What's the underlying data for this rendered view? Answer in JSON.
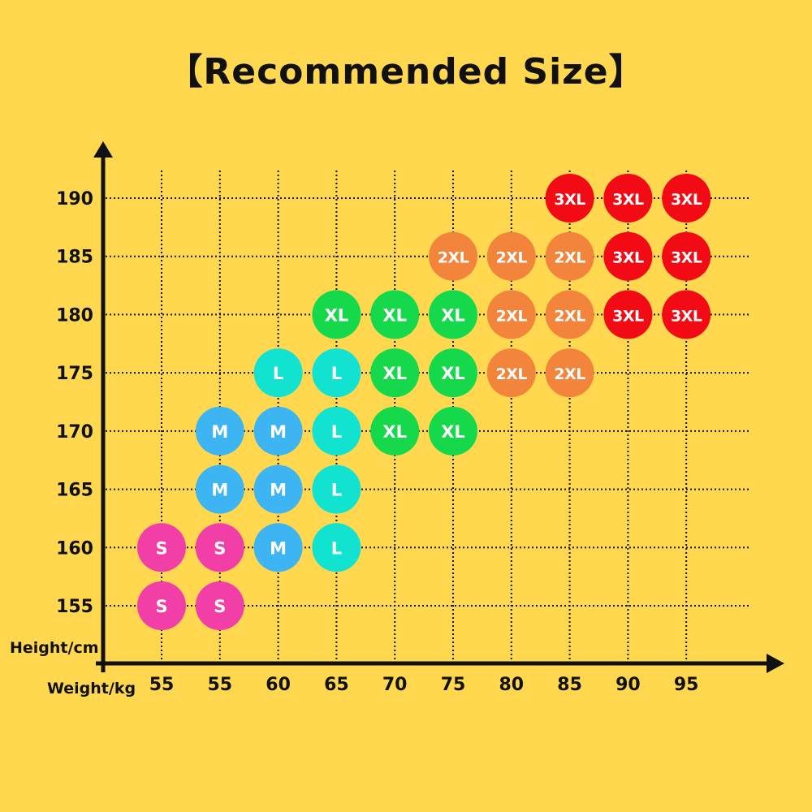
{
  "chart_data": {
    "type": "scatter",
    "title": "【Recommended Size】",
    "xlabel": "Weight/kg",
    "ylabel": "Height/cm",
    "x_categories": [
      "55",
      "55",
      "60",
      "65",
      "70",
      "75",
      "80",
      "85",
      "90",
      "95"
    ],
    "y_ticks": [
      155,
      160,
      165,
      170,
      175,
      180,
      185,
      190
    ],
    "grid": true,
    "size_colors": {
      "S": "#F23FA8",
      "M": "#3DB5F2",
      "L": "#12E3D1",
      "XL": "#15D94A",
      "2XL": "#F2843B",
      "3XL": "#F20A14"
    },
    "points": [
      {
        "col": 7,
        "height": 190,
        "size": "3XL"
      },
      {
        "col": 8,
        "height": 190,
        "size": "3XL"
      },
      {
        "col": 9,
        "height": 190,
        "size": "3XL"
      },
      {
        "col": 5,
        "height": 185,
        "size": "2XL"
      },
      {
        "col": 6,
        "height": 185,
        "size": "2XL"
      },
      {
        "col": 7,
        "height": 185,
        "size": "2XL"
      },
      {
        "col": 8,
        "height": 185,
        "size": "3XL"
      },
      {
        "col": 9,
        "height": 185,
        "size": "3XL"
      },
      {
        "col": 3,
        "height": 180,
        "size": "XL"
      },
      {
        "col": 4,
        "height": 180,
        "size": "XL"
      },
      {
        "col": 5,
        "height": 180,
        "size": "XL"
      },
      {
        "col": 6,
        "height": 180,
        "size": "2XL"
      },
      {
        "col": 7,
        "height": 180,
        "size": "2XL"
      },
      {
        "col": 8,
        "height": 180,
        "size": "3XL"
      },
      {
        "col": 9,
        "height": 180,
        "size": "3XL"
      },
      {
        "col": 2,
        "height": 175,
        "size": "L"
      },
      {
        "col": 3,
        "height": 175,
        "size": "L"
      },
      {
        "col": 4,
        "height": 175,
        "size": "XL"
      },
      {
        "col": 5,
        "height": 175,
        "size": "XL"
      },
      {
        "col": 6,
        "height": 175,
        "size": "2XL"
      },
      {
        "col": 7,
        "height": 175,
        "size": "2XL"
      },
      {
        "col": 1,
        "height": 170,
        "size": "M"
      },
      {
        "col": 2,
        "height": 170,
        "size": "M"
      },
      {
        "col": 3,
        "height": 170,
        "size": "L"
      },
      {
        "col": 4,
        "height": 170,
        "size": "XL"
      },
      {
        "col": 5,
        "height": 170,
        "size": "XL"
      },
      {
        "col": 1,
        "height": 165,
        "size": "M"
      },
      {
        "col": 2,
        "height": 165,
        "size": "M"
      },
      {
        "col": 3,
        "height": 165,
        "size": "L"
      },
      {
        "col": 0,
        "height": 160,
        "size": "S"
      },
      {
        "col": 1,
        "height": 160,
        "size": "S"
      },
      {
        "col": 2,
        "height": 160,
        "size": "M"
      },
      {
        "col": 3,
        "height": 160,
        "size": "L"
      },
      {
        "col": 0,
        "height": 155,
        "size": "S"
      },
      {
        "col": 1,
        "height": 155,
        "size": "S"
      }
    ]
  }
}
